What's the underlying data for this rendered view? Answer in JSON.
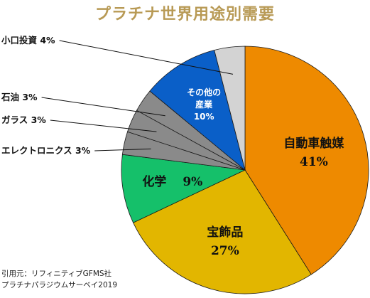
{
  "title": "プラチナ世界用途別需要",
  "source": {
    "line1": "引用元：リフィニティブGFMS社",
    "line2": "プラチナパラジウムサーベイ2019"
  },
  "chart_data": {
    "type": "pie",
    "unit": "%",
    "slices": [
      {
        "name": "自動車触媒",
        "value": 41,
        "display": "41%",
        "color": "#ee8a00",
        "label": "inside"
      },
      {
        "name": "宝飾品",
        "value": 27,
        "display": "27%",
        "color": "#e2b600",
        "label": "inside"
      },
      {
        "name": "化学",
        "value": 9,
        "display": "9%",
        "color": "#15c06a",
        "label": "inside"
      },
      {
        "name": "エレクトロニクス",
        "value": 3,
        "display": "3%",
        "color": "#8a8a8a",
        "label": "outside"
      },
      {
        "name": "ガラス",
        "value": 3,
        "display": "3%",
        "color": "#8a8a8a",
        "label": "outside"
      },
      {
        "name": "石油",
        "value": 3,
        "display": "3%",
        "color": "#8a8a8a",
        "label": "outside"
      },
      {
        "name": "その他の産業",
        "value": 10,
        "display": "10%",
        "color": "#0a5fc8",
        "label": "inside"
      },
      {
        "name": "小口投資",
        "value": 4,
        "display": "4%",
        "color": "#d3d3d3",
        "label": "outside"
      }
    ]
  }
}
